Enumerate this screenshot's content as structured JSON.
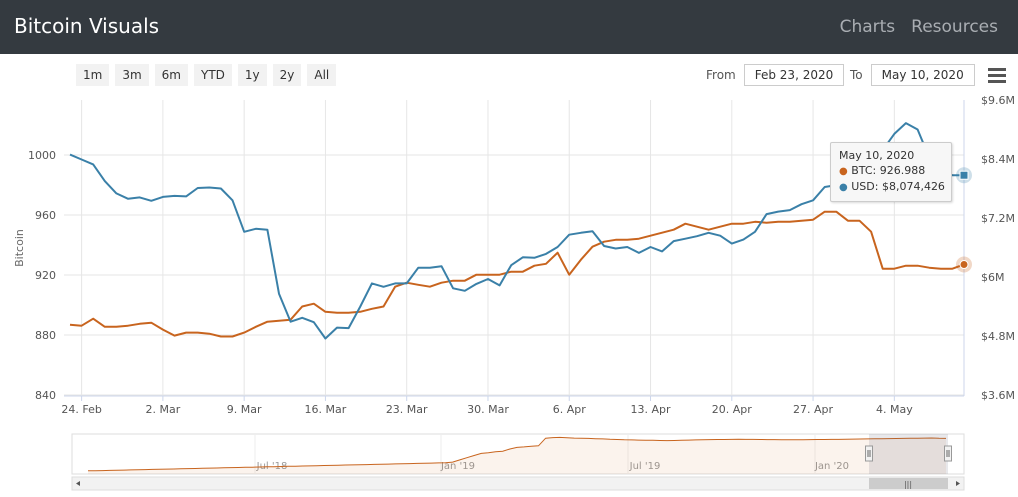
{
  "header": {
    "title": "Bitcoin Visuals",
    "nav": [
      "Charts",
      "Resources"
    ]
  },
  "range_buttons": [
    "1m",
    "3m",
    "6m",
    "YTD",
    "1y",
    "2y",
    "All"
  ],
  "date_range": {
    "from_label": "From",
    "from_value": "Feb 23, 2020",
    "to_label": "To",
    "to_value": "May 10, 2020"
  },
  "tooltip": {
    "date": "May 10, 2020",
    "btc_label": "BTC:",
    "btc_value": "926.988",
    "usd_label": "USD:",
    "usd_value": "$8,074,426"
  },
  "colors": {
    "btc": "#c8641e",
    "usd": "#3a80a8"
  },
  "chart_data": {
    "type": "line",
    "title": "",
    "xlabel": "",
    "ylabel_left": "Bitcoin",
    "ylabel_right": "",
    "x_ticks": [
      "24. Feb",
      "2. Mar",
      "9. Mar",
      "16. Mar",
      "23. Mar",
      "30. Mar",
      "6. Apr",
      "13. Apr",
      "20. Apr",
      "27. Apr",
      "4. May"
    ],
    "y_left_ticks": [
      "840",
      "880",
      "920",
      "960",
      "1000"
    ],
    "y_left_range": [
      840,
      1000
    ],
    "y_right_ticks": [
      "$3.6M",
      "$4.8M",
      "$6M",
      "$7.2M",
      "$8.4M",
      "$9.6M"
    ],
    "y_right_range": [
      3.6,
      9.6
    ],
    "x_dates": [
      "Feb 23",
      "Feb 24",
      "Feb 25",
      "Feb 26",
      "Feb 27",
      "Feb 28",
      "Feb 29",
      "Mar 1",
      "Mar 2",
      "Mar 3",
      "Mar 4",
      "Mar 5",
      "Mar 6",
      "Mar 7",
      "Mar 8",
      "Mar 9",
      "Mar 10",
      "Mar 11",
      "Mar 12",
      "Mar 13",
      "Mar 14",
      "Mar 15",
      "Mar 16",
      "Mar 17",
      "Mar 18",
      "Mar 19",
      "Mar 20",
      "Mar 21",
      "Mar 22",
      "Mar 23",
      "Mar 24",
      "Mar 25",
      "Mar 26",
      "Mar 27",
      "Mar 28",
      "Mar 29",
      "Mar 30",
      "Mar 31",
      "Apr 1",
      "Apr 2",
      "Apr 3",
      "Apr 4",
      "Apr 5",
      "Apr 6",
      "Apr 7",
      "Apr 8",
      "Apr 9",
      "Apr 10",
      "Apr 11",
      "Apr 12",
      "Apr 13",
      "Apr 14",
      "Apr 15",
      "Apr 16",
      "Apr 17",
      "Apr 18",
      "Apr 19",
      "Apr 20",
      "Apr 21",
      "Apr 22",
      "Apr 23",
      "Apr 24",
      "Apr 25",
      "Apr 26",
      "Apr 27",
      "Apr 28",
      "Apr 29",
      "Apr 30",
      "May 1",
      "May 2",
      "May 3",
      "May 4",
      "May 5",
      "May 6",
      "May 7",
      "May 8",
      "May 9",
      "May 10"
    ],
    "series": [
      {
        "name": "BTC",
        "axis": "left",
        "values": [
          886.8,
          886.2,
          890.9,
          885.5,
          885.5,
          886.2,
          887.5,
          888.2,
          883.6,
          879.6,
          881.6,
          881.6,
          880.9,
          879.0,
          879.0,
          881.6,
          885.5,
          888.9,
          889.5,
          890.2,
          899.0,
          900.9,
          895.5,
          894.9,
          894.9,
          895.5,
          897.5,
          899.0,
          912.2,
          914.9,
          913.5,
          912.2,
          914.9,
          916.2,
          916.2,
          920.2,
          920.2,
          920.2,
          922.2,
          922.2,
          926.2,
          927.5,
          934.9,
          920.2,
          930.2,
          938.9,
          942.2,
          943.5,
          943.5,
          944.2,
          946.2,
          948.2,
          950.2,
          954.2,
          952.2,
          950.2,
          952.2,
          954.2,
          954.2,
          955.5,
          954.9,
          955.5,
          955.5,
          956.2,
          956.9,
          962.2,
          962.2,
          956.2,
          956.2,
          948.9,
          924.2,
          924.2,
          926.2,
          926.2,
          924.9,
          924.2,
          924.2,
          926.988
        ]
      },
      {
        "name": "USD",
        "axis": "right",
        "values": [
          8.49,
          8.39,
          8.29,
          7.95,
          7.7,
          7.59,
          7.62,
          7.55,
          7.63,
          7.65,
          7.64,
          7.81,
          7.82,
          7.8,
          7.56,
          6.92,
          6.98,
          6.96,
          5.66,
          5.09,
          5.17,
          5.08,
          4.75,
          4.97,
          4.96,
          5.4,
          5.87,
          5.8,
          5.87,
          5.87,
          6.19,
          6.19,
          6.22,
          5.77,
          5.72,
          5.86,
          5.96,
          5.83,
          6.24,
          6.4,
          6.39,
          6.47,
          6.61,
          6.86,
          6.9,
          6.93,
          6.63,
          6.58,
          6.61,
          6.49,
          6.61,
          6.52,
          6.73,
          6.78,
          6.83,
          6.9,
          6.84,
          6.68,
          6.76,
          6.92,
          7.28,
          7.33,
          7.36,
          7.48,
          7.56,
          7.83,
          7.87,
          7.95,
          8.16,
          8.25,
          8.58,
          8.91,
          9.13,
          9.0,
          8.43,
          8.15,
          8.07,
          8.07
        ]
      }
    ],
    "navigator": {
      "x_ticks": [
        "Jul '18",
        "Jan '19",
        "Jul '19",
        "Jan '20"
      ],
      "btc_values": [
        360,
        361,
        363,
        366,
        369,
        372,
        375,
        378,
        381,
        384,
        387,
        390,
        393,
        396,
        399,
        402,
        405,
        408,
        411,
        414,
        417,
        420,
        423,
        426,
        429,
        432,
        435,
        438,
        441,
        444,
        447,
        450,
        453,
        456,
        459,
        462,
        465,
        468,
        471,
        474,
        477,
        480,
        483,
        486,
        489,
        492,
        495,
        498,
        501,
        504,
        507,
        520,
        560,
        600,
        640,
        680,
        690,
        710,
        720,
        760,
        790,
        800,
        812,
        820,
        960,
        970,
        975,
        968,
        962,
        958,
        955,
        950,
        946,
        940,
        935,
        930,
        928,
        925,
        922,
        920,
        918,
        916,
        918,
        921,
        925,
        928,
        931,
        933,
        935,
        936,
        938,
        940,
        938,
        937,
        935,
        934,
        933,
        932,
        931,
        930,
        932,
        934,
        935,
        936,
        937,
        938,
        940,
        942,
        944,
        946,
        948,
        950,
        952,
        954,
        956,
        958,
        960,
        962,
        963,
        958,
        955
      ]
    }
  }
}
